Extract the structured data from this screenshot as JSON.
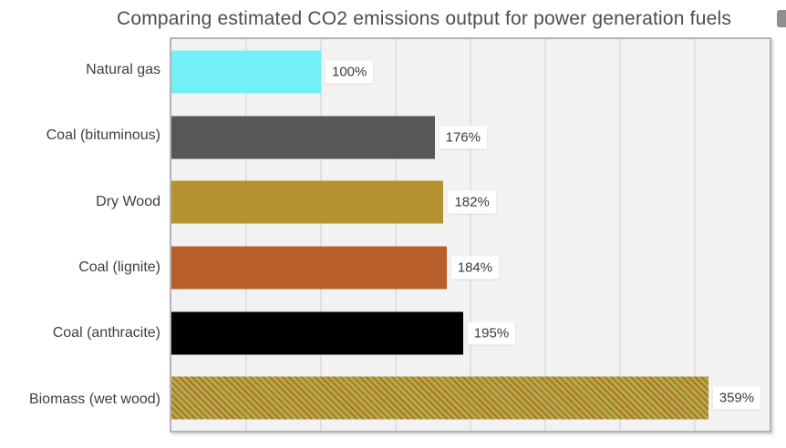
{
  "title": "Comparing estimated CO2 emissions output for power generation fuels",
  "chart_data": {
    "type": "bar",
    "orientation": "horizontal",
    "title": "Comparing estimated CO2 emissions output for power generation fuels",
    "xlabel": "",
    "ylabel": "",
    "categories": [
      "Natural gas",
      "Coal (bituminous)",
      "Dry Wood",
      "Coal (lignite)",
      "Coal (anthracite)",
      "Biomass (wet wood)"
    ],
    "values": [
      100,
      176,
      182,
      184,
      195,
      359
    ],
    "data_labels": [
      "100%",
      "176%",
      "182%",
      "184%",
      "195%",
      "359%"
    ],
    "xlim": [
      0,
      400
    ],
    "gridline_step": 50,
    "grid": true,
    "legend": "none",
    "bar_colors": [
      "#73EFF7",
      "#575757",
      "#B5912F",
      "#B9602A",
      "#000000",
      "pattern"
    ],
    "pattern_colors": [
      "#A9B244",
      "#BD6B32"
    ]
  },
  "colors": {
    "plot_background": "#f2f2f2",
    "plot_border": "#b3b3b3",
    "gridline": "#e1e1e1",
    "title_text": "#4d4d4d",
    "category_text": "#3e3e3e",
    "value_text": "#3a3a3a",
    "value_box_background": "#ffffff"
  }
}
